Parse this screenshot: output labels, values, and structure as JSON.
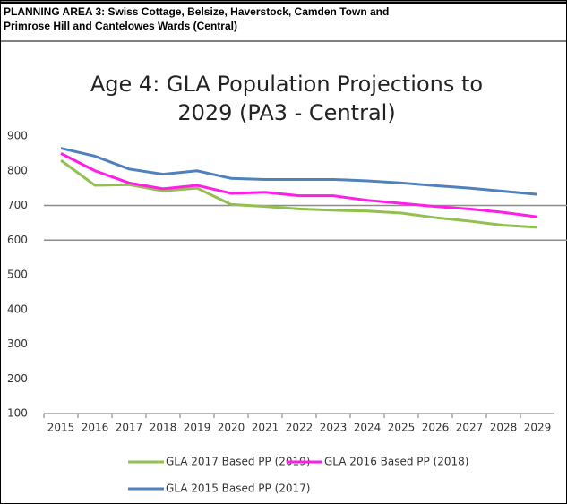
{
  "header": {
    "title_line1": "PLANNING AREA 3: Swiss Cottage, Belsize, Haverstock, Camden Town and",
    "title_line2": "Primrose Hill and Cantelowes Wards (Central)"
  },
  "chart_data": {
    "type": "line",
    "title_line1": "Age 4: GLA Population Projections to",
    "title_line2": "2029 (PA3 - Central)",
    "categories": [
      "2015",
      "2016",
      "2017",
      "2018",
      "2019",
      "2020",
      "2021",
      "2022",
      "2023",
      "2024",
      "2025",
      "2026",
      "2027",
      "2028",
      "2029"
    ],
    "series": [
      {
        "name": "GLA 2017 Based PP (2019)",
        "color": "#92c050",
        "values": [
          830,
          758,
          760,
          742,
          750,
          703,
          697,
          690,
          686,
          684,
          678,
          665,
          655,
          643,
          637
        ]
      },
      {
        "name": "GLA 2016 Based PP (2018)",
        "color": "#ff1ee6",
        "values": [
          850,
          800,
          765,
          748,
          758,
          735,
          738,
          728,
          728,
          715,
          706,
          697,
          690,
          680,
          667
        ]
      },
      {
        "name": "GLA 2015 Based PP (2017)",
        "color": "#4f81bd",
        "values": [
          865,
          842,
          805,
          790,
          800,
          778,
          775,
          775,
          775,
          771,
          765,
          757,
          750,
          741,
          732
        ]
      }
    ],
    "ylim": [
      100,
      900
    ],
    "yticks": [
      100,
      200,
      300,
      400,
      500,
      600,
      700,
      800,
      900
    ],
    "grid_values": [
      600,
      700
    ],
    "legend": "bottom"
  }
}
